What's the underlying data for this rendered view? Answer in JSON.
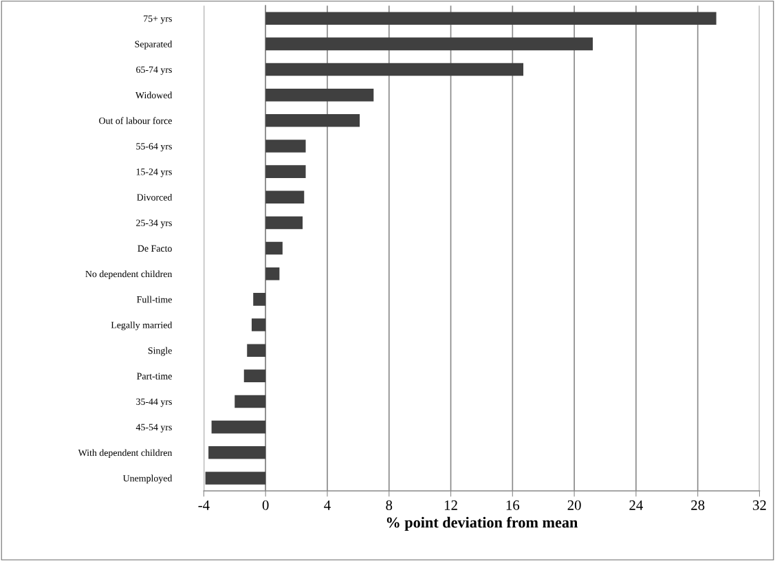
{
  "chart_data": {
    "type": "bar",
    "orientation": "horizontal",
    "xlabel": "% point deviation from mean",
    "categories": [
      "75+ yrs",
      "Separated",
      "65-74 yrs",
      "Widowed",
      "Out of labour force",
      "55-64 yrs",
      "15-24 yrs",
      "Divorced",
      "25-34 yrs",
      "De Facto",
      "No dependent children",
      "Full-time",
      "Legally married",
      "Single",
      "Part-time",
      "35-44 yrs",
      "45-54 yrs",
      "With dependent children",
      "Unemployed"
    ],
    "values": [
      29.2,
      21.2,
      16.7,
      7.0,
      6.1,
      2.6,
      2.6,
      2.5,
      2.4,
      1.1,
      0.9,
      -0.8,
      -0.9,
      -1.2,
      -1.4,
      -2.0,
      -3.5,
      -3.7,
      -3.9
    ],
    "color": "#404040",
    "xlim": [
      -4,
      32
    ],
    "xticks": [
      {
        "value": -4,
        "label": "-4"
      },
      0,
      4,
      8,
      12,
      16,
      20,
      24,
      28,
      32
    ],
    "grid": "x",
    "legend": false
  }
}
